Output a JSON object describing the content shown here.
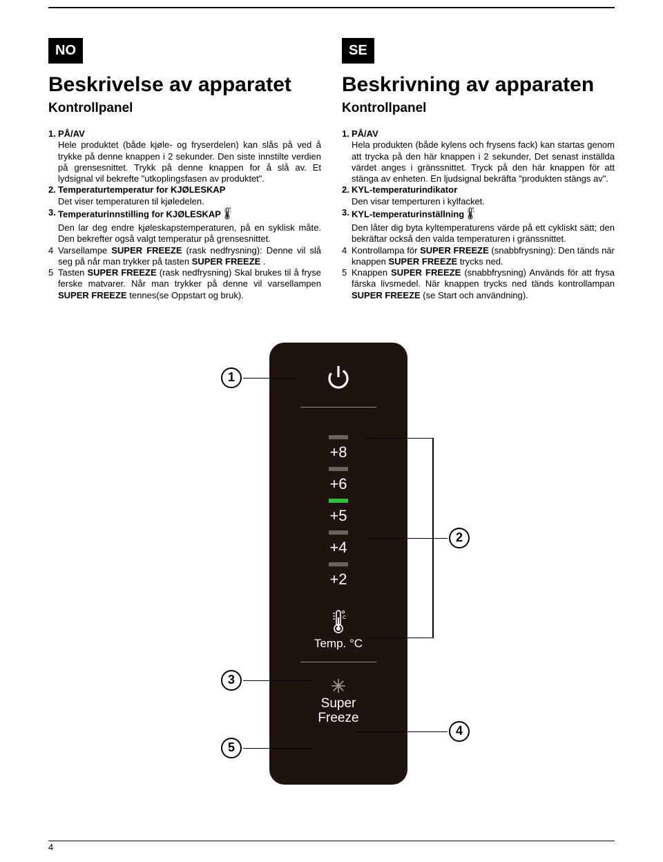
{
  "colors": {
    "panel_bg": "#1e130e",
    "bar_inactive": "#6b625d",
    "bar_active": "#2bbf3a",
    "text": "#000000",
    "panel_text": "#ffffff"
  },
  "page_number": "4",
  "left": {
    "lang": "NO",
    "title": "Beskrivelse av apparatet",
    "subtitle": "Kontrollpanel",
    "items": [
      {
        "n": "1.",
        "lead": "PÅ/AV",
        "body": "Hele produktet (både kjøle- og fryserdelen) kan slås på ved å trykke på denne knappen i 2 sekunder.\nDen siste innstilte verdien på grensesnittet. Trykk på denne knappen for å slå av. Et lydsignal vil bekrefte \"utkoplingsfasen av produktet\"."
      },
      {
        "n": "2.",
        "lead": "Temperaturtemperatur for KJØLESKAP",
        "body": "Det viser temperaturen til kjøledelen."
      },
      {
        "n": "3.",
        "lead": "Temperaturinnstilling for KJØLESKAP",
        "icon": true,
        "body": "Den lar deg endre kjøleskapstemperaturen, på en syklisk måte. Den bekrefter også valgt temperatur på grensesnittet."
      },
      {
        "n": "4",
        "plain": true,
        "body_runs": [
          {
            "t": "Varsellampe "
          },
          {
            "t": "SUPER FREEZE",
            "b": true
          },
          {
            "t": " (rask nedfrysning): Denne vil slå seg på når man trykker på tasten "
          },
          {
            "t": "SUPER FREEZE",
            "b": true
          },
          {
            "t": " ."
          }
        ]
      },
      {
        "n": "5",
        "plain": true,
        "body_runs": [
          {
            "t": "Tasten "
          },
          {
            "t": "SUPER FREEZE",
            "b": true
          },
          {
            "t": " (rask nedfrysning) Skal brukes til å fryse ferske matvarer. Når man trykker på denne vil varsellampen "
          },
          {
            "t": "SUPER FREEZE",
            "b": true
          },
          {
            "t": " tennes(se Oppstart og bruk)."
          }
        ]
      }
    ]
  },
  "right": {
    "lang": "SE",
    "title": "Beskrivning av apparaten",
    "subtitle": "Kontrollpanel",
    "items": [
      {
        "n": "1.",
        "lead": "PÅ/AV",
        "body": "Hela produkten (både kylens och frysens fack) kan startas genom att trycka på den här knappen i 2 sekunder,\nDet senast inställda värdet anges i gränssnittet. Tryck på den här knappen för att stänga av enheten. En ljudsignal bekräfta \"produkten stängs av\"."
      },
      {
        "n": "2.",
        "lead": "KYL-temperaturindikator",
        "body": "Den visar temperturen i kylfacket."
      },
      {
        "n": "3.",
        "lead": "KYL-temperaturinställning",
        "icon": true,
        "body": "Den låter dig byta kyltemperaturens värde på ett cykliskt sätt; den bekräftar också den valda temperaturen i gränssnittet."
      },
      {
        "n": "4",
        "plain": true,
        "body_runs": [
          {
            "t": "Kontrollampa för "
          },
          {
            "t": "SUPER FREEZE",
            "b": true
          },
          {
            "t": " (snabbfrysning): Den tänds när knappen "
          },
          {
            "t": "SUPER FREEZE",
            "b": true
          },
          {
            "t": " trycks ned."
          }
        ]
      },
      {
        "n": "5",
        "plain": true,
        "body_runs": [
          {
            "t": "Knappen "
          },
          {
            "t": "SUPER FREEZE",
            "b": true
          },
          {
            "t": " (snabbfrysning) Används för att frysa färska livsmedel. När knappen trycks ned tänds kontrollampan "
          },
          {
            "t": "SUPER FREEZE",
            "b": true
          },
          {
            "t": " (se Start och användning)."
          }
        ]
      }
    ]
  },
  "panel": {
    "temps": [
      {
        "v": "+8",
        "active": false
      },
      {
        "v": "+6",
        "active": false
      },
      {
        "v": "+5",
        "active": true
      },
      {
        "v": "+4",
        "active": false
      },
      {
        "v": "+2",
        "active": false
      }
    ],
    "temp_label": "Temp. °C",
    "sf_label": "Super\nFreeze"
  },
  "callouts": {
    "c1": "1",
    "c2": "2",
    "c3": "3",
    "c4": "4",
    "c5": "5"
  }
}
